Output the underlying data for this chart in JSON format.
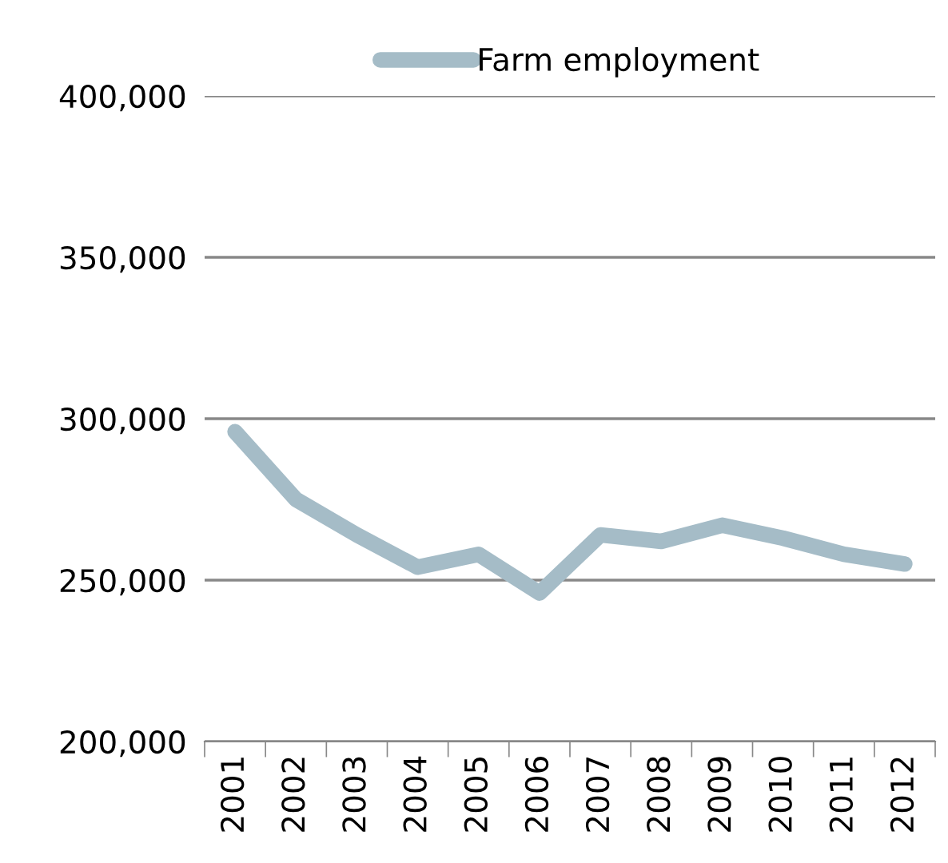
{
  "chart_data": {
    "type": "line",
    "categories": [
      "2001",
      "2002",
      "2003",
      "2004",
      "2005",
      "2006",
      "2007",
      "2008",
      "2009",
      "2010",
      "2011",
      "2012"
    ],
    "series": [
      {
        "name": "Farm employment",
        "color": "#a5bcc7",
        "values": [
          296000,
          275000,
          264000,
          254000,
          258000,
          246000,
          264000,
          262000,
          267000,
          263000,
          258000,
          255000
        ]
      }
    ],
    "ylim": [
      200000,
      400000
    ],
    "yticks": [
      {
        "value": 200000,
        "label": "200,000"
      },
      {
        "value": 250000,
        "label": "250,000"
      },
      {
        "value": 300000,
        "label": "300,000"
      },
      {
        "value": 350000,
        "label": "350,000"
      },
      {
        "value": 400000,
        "label": "400,000"
      }
    ],
    "grid": "y",
    "legend": "top",
    "marker": "none",
    "line_style": "solid"
  }
}
